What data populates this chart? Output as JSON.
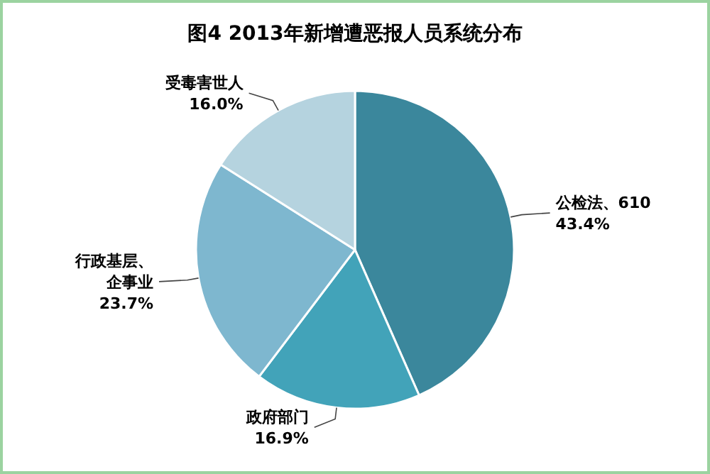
{
  "chart_data": {
    "type": "pie",
    "title": "图4   2013年新增遭恶报人员系统分布",
    "categories": [
      "公检法、610",
      "政府部门",
      "行政基层、企事业",
      "受毒害世人"
    ],
    "values": [
      43.4,
      16.9,
      23.7,
      16.0
    ],
    "value_labels": [
      "43.4%",
      "16.9%",
      "23.7%",
      "16.0%"
    ],
    "colors": [
      "#3b879c",
      "#42a3b9",
      "#7eb7cf",
      "#b5d3df"
    ]
  }
}
